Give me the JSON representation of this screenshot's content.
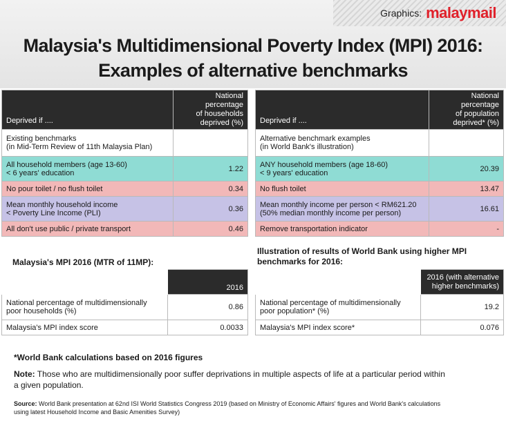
{
  "header": {
    "brand_prefix": "Graphics:",
    "brand_logo": "malaymail",
    "title_line1": "Malaysia's Multidimensional Poverty Index (MPI) 2016:",
    "title_line2": "Examples of alternative benchmarks"
  },
  "left_table": {
    "col1_header": "Deprived if ....",
    "col2_header": [
      "National percentage",
      "of households",
      "deprived (%)"
    ],
    "section_line1": "Existing benchmarks",
    "section_line2": "(in Mid-Term Review of 11th Malaysia Plan)",
    "rows": [
      {
        "line1": "All household members (age 13-60)",
        "line2": "< 6 years' education",
        "value": "1.22"
      },
      {
        "line1": "No pour toilet / no flush toilet",
        "line2": "",
        "value": "0.34"
      },
      {
        "line1": "Mean monthly household income",
        "line2": "< Poverty Line Income (PLI)",
        "value": "0.36"
      },
      {
        "line1": "All don't use public / private transport",
        "line2": "",
        "value": "0.46"
      }
    ]
  },
  "right_table": {
    "col1_header": "Deprived if ....",
    "col2_header": [
      "National percentage",
      "of population",
      "deprived* (%)"
    ],
    "section_line1": "Alternative benchmark examples",
    "section_line2": "(in World Bank's illustration)",
    "rows": [
      {
        "line1": "ANY household members (age 18-60)",
        "line2": "< 9 years' education",
        "value": "20.39"
      },
      {
        "line1": "No flush toilet",
        "line2": "",
        "value": "13.47"
      },
      {
        "line1": "Mean monthly income per person < RM621.20",
        "line2": "(50% median monthly income per person)",
        "value": "16.61"
      },
      {
        "line1": "Remove transportation indicator",
        "line2": "",
        "value": "-"
      }
    ]
  },
  "left_mpi": {
    "label": "Malaysia's MPI 2016 (MTR of 11MP):",
    "col_header": "2016",
    "row1_line1": "National percentage of multidimensionally",
    "row1_line2": "poor households (%)",
    "row1_value": "0.86",
    "row2_label": "Malaysia's MPI index score",
    "row2_value": "0.0033"
  },
  "right_mpi": {
    "label_line1": "Illustration of results of World Bank using higher MPI",
    "label_line2": "benchmarks for 2016:",
    "col_header_line1": "2016 (with alternative",
    "col_header_line2": "higher benchmarks)",
    "row1_line1": "National percentage of multidimensionally",
    "row1_line2": "poor population* (%)",
    "row1_value": "19.2",
    "row2_label": "Malaysia's MPI index score*",
    "row2_value": "0.076"
  },
  "notes": {
    "world_bank": "*World Bank calculations based on 2016 figures",
    "note_label": "Note:",
    "note_text": "Those who are multidimensionally poor suffer deprivations in multiple aspects of life at a particular period within",
    "note_text2": "a given population.",
    "source_label": "Source:",
    "source_text": "World Bank presentation at 62nd ISI World Statistics Congress 2019 (based on Ministry of Economic Affairs' figures and World Bank's calculations",
    "source_text2": "using latest Household Income and Basic Amenities Survey)"
  },
  "colors": {
    "teal": "#8fdcd4",
    "pink": "#f2b8b8",
    "lavender": "#c6c2e6",
    "header_dark": "#2b2b2b",
    "brand_red": "#e0202a"
  }
}
